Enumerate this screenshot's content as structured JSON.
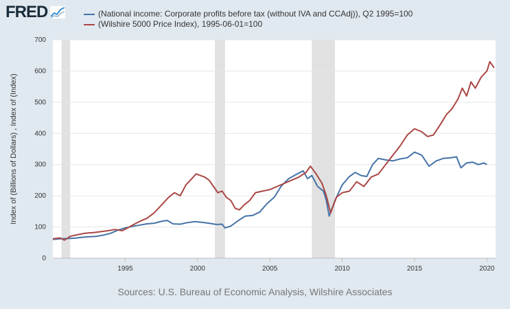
{
  "logo": {
    "text": "FRED"
  },
  "legend": [
    {
      "label": "(National income: Corporate profits before tax (without IVA and CCAdj)), Q2 1995=100",
      "color": "#4572a7"
    },
    {
      "label": "(Wilshire 5000 Price Index), 1995-06-01=100",
      "color": "#aa4643"
    }
  ],
  "source": "Sources: U.S. Bureau of Economic Analysis, Wilshire Associates",
  "chart_data": {
    "type": "line",
    "ylabel": "Index of (Billions of Dollars) , Index of (Index)",
    "xlabel": "",
    "ylim": [
      0,
      700
    ],
    "xlim": [
      1990.0,
      2020.6
    ],
    "yticks": [
      "0",
      "100",
      "200",
      "300",
      "400",
      "500",
      "600",
      "700"
    ],
    "xticks": [
      "1995",
      "2000",
      "2005",
      "2010",
      "2015",
      "2020"
    ],
    "xtick_values": [
      1995,
      2000,
      2005,
      2010,
      2015,
      2020
    ],
    "grid": true,
    "recessions": [
      [
        1990.6,
        1991.2
      ],
      [
        2001.2,
        2001.9
      ],
      [
        2007.9,
        2009.5
      ]
    ],
    "series": [
      {
        "name": "(National income: Corporate profits before tax (without IVA and CCAdj)), Q2 1995=100",
        "color": "#4572a7",
        "x": [
          1990.0,
          1990.5,
          1991.0,
          1991.5,
          1992.0,
          1992.5,
          1993.0,
          1993.5,
          1994.0,
          1994.5,
          1995.0,
          1995.5,
          1996.0,
          1996.5,
          1997.0,
          1997.5,
          1997.9,
          1998.3,
          1998.8,
          1999.3,
          1999.8,
          2000.3,
          2000.8,
          2001.3,
          2001.7,
          2001.9,
          2002.3,
          2002.8,
          2003.3,
          2003.8,
          2004.3,
          2004.8,
          2005.3,
          2005.8,
          2006.3,
          2006.8,
          2007.3,
          2007.6,
          2007.9,
          2008.3,
          2008.7,
          2008.9,
          2009.1,
          2009.5,
          2010.0,
          2010.5,
          2010.9,
          2011.3,
          2011.7,
          2012.1,
          2012.5,
          2013.0,
          2013.5,
          2014.0,
          2014.5,
          2015.0,
          2015.5,
          2016.0,
          2016.5,
          2017.0,
          2017.5,
          2017.9,
          2018.2,
          2018.6,
          2019.0,
          2019.4,
          2019.8,
          2020.0
        ],
        "values": [
          60,
          62,
          63,
          64,
          67,
          69,
          70,
          74,
          80,
          90,
          97,
          102,
          106,
          110,
          112,
          118,
          121,
          110,
          109,
          114,
          117,
          115,
          112,
          108,
          109,
          97,
          103,
          120,
          135,
          137,
          148,
          175,
          195,
          232,
          255,
          268,
          280,
          255,
          265,
          230,
          215,
          185,
          135,
          185,
          235,
          262,
          275,
          265,
          262,
          300,
          320,
          315,
          312,
          318,
          322,
          340,
          330,
          295,
          312,
          320,
          322,
          325,
          290,
          305,
          308,
          300,
          305,
          300
        ]
      },
      {
        "name": "(Wilshire 5000 Price Index), 1995-06-01=100",
        "color": "#aa4643",
        "x": [
          1990.0,
          1990.5,
          1990.8,
          1991.2,
          1991.7,
          1992.2,
          1992.8,
          1993.3,
          1993.8,
          1994.3,
          1994.8,
          1995.2,
          1995.6,
          1996.0,
          1996.5,
          1997.0,
          1997.5,
          1998.0,
          1998.4,
          1998.8,
          1999.2,
          1999.6,
          1999.9,
          2000.2,
          2000.5,
          2000.8,
          2001.1,
          2001.4,
          2001.7,
          2002.0,
          2002.3,
          2002.6,
          2002.9,
          2003.2,
          2003.6,
          2004.0,
          2004.5,
          2005.0,
          2005.5,
          2006.0,
          2006.5,
          2007.0,
          2007.5,
          2007.8,
          2008.2,
          2008.6,
          2008.9,
          2009.2,
          2009.6,
          2010.0,
          2010.5,
          2011.0,
          2011.5,
          2012.0,
          2012.5,
          2013.0,
          2013.5,
          2014.0,
          2014.5,
          2015.0,
          2015.5,
          2015.9,
          2016.3,
          2016.8,
          2017.2,
          2017.6,
          2018.0,
          2018.3,
          2018.6,
          2018.9,
          2019.2,
          2019.6,
          2020.0,
          2020.2,
          2020.5
        ],
        "values": [
          62,
          65,
          58,
          70,
          75,
          80,
          82,
          85,
          88,
          92,
          88,
          98,
          108,
          118,
          128,
          145,
          170,
          195,
          210,
          200,
          235,
          255,
          270,
          265,
          260,
          250,
          230,
          210,
          215,
          195,
          185,
          160,
          155,
          170,
          185,
          210,
          215,
          220,
          230,
          240,
          250,
          260,
          275,
          295,
          270,
          240,
          200,
          145,
          195,
          210,
          215,
          245,
          230,
          260,
          270,
          300,
          330,
          360,
          395,
          415,
          405,
          390,
          395,
          430,
          460,
          480,
          510,
          545,
          520,
          565,
          545,
          580,
          600,
          630,
          610
        ]
      }
    ]
  }
}
